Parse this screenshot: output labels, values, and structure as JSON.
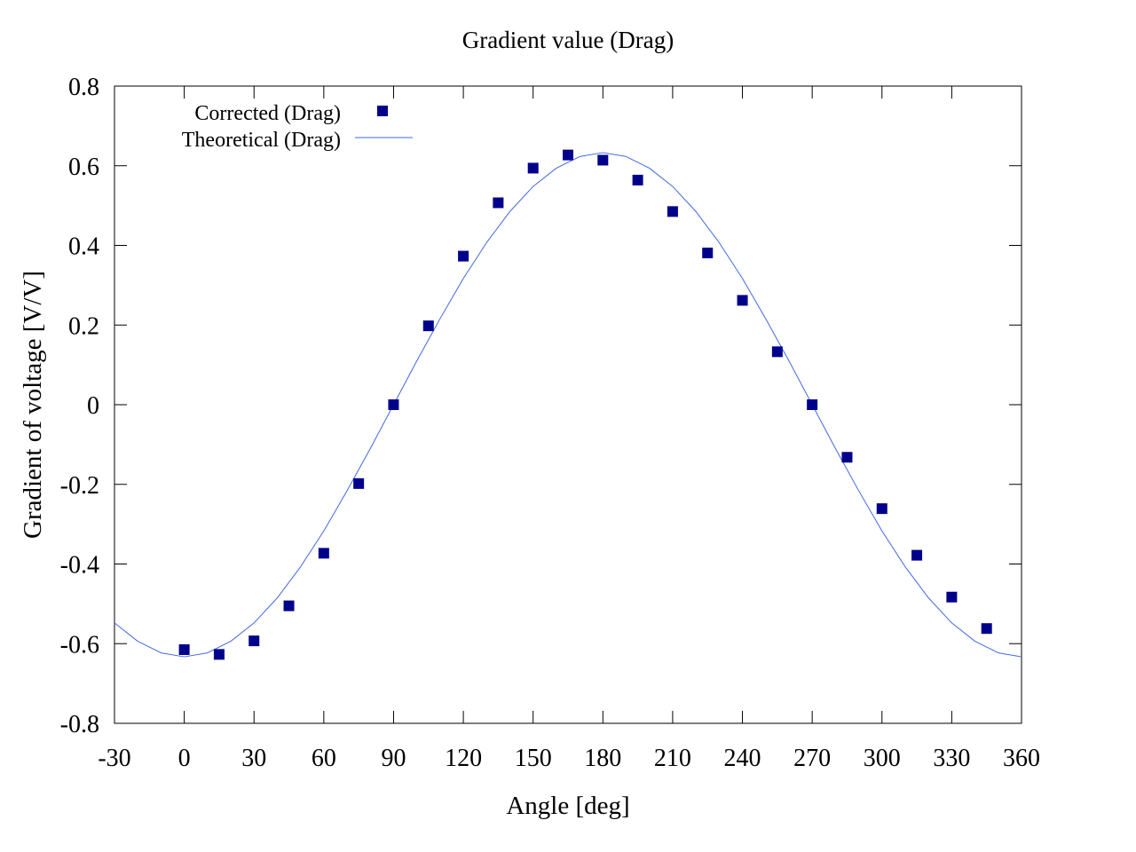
{
  "chart_data": {
    "type": "scatter",
    "title": "Gradient value (Drag)",
    "xlabel": "Angle [deg]",
    "ylabel": "Gradient of voltage [V/V]",
    "xlim": [
      -30,
      360
    ],
    "ylim": [
      -0.8,
      0.8
    ],
    "xticks": [
      -30,
      0,
      30,
      60,
      90,
      120,
      150,
      180,
      210,
      240,
      270,
      300,
      330,
      360
    ],
    "xtick_labels": [
      "-30",
      "0",
      "30",
      "60",
      "90",
      "120",
      "150",
      "180",
      "210",
      "240",
      "270",
      "300",
      "330",
      "360"
    ],
    "yticks": [
      -0.8,
      -0.6,
      -0.4,
      -0.2,
      0,
      0.2,
      0.4,
      0.6,
      0.8
    ],
    "ytick_labels": [
      "-0.8",
      "-0.6",
      "-0.4",
      "-0.2",
      "0",
      "0.2",
      "0.4",
      "0.6",
      "0.8"
    ],
    "grid": false,
    "legend_position": "top-left",
    "series": [
      {
        "name": "Corrected (Drag)",
        "kind": "points",
        "marker": "square",
        "color": "#00008b",
        "x": [
          0,
          15,
          30,
          45,
          60,
          75,
          90,
          105,
          120,
          135,
          150,
          165,
          180,
          195,
          210,
          225,
          240,
          255,
          270,
          285,
          300,
          315,
          330,
          345
        ],
        "y": [
          -0.615,
          -0.627,
          -0.593,
          -0.505,
          -0.373,
          -0.198,
          0.0,
          0.198,
          0.373,
          0.507,
          0.594,
          0.627,
          0.614,
          0.564,
          0.485,
          0.381,
          0.262,
          0.133,
          0.0,
          -0.132,
          -0.261,
          -0.378,
          -0.483,
          -0.562
        ]
      },
      {
        "name": "Theoretical (Drag)",
        "kind": "line",
        "color": "#4169e1",
        "x": [
          -30,
          -20,
          -10,
          0,
          10,
          20,
          30,
          40,
          50,
          60,
          70,
          80,
          90,
          100,
          110,
          120,
          130,
          140,
          150,
          160,
          170,
          180,
          190,
          200,
          210,
          220,
          230,
          240,
          250,
          260,
          270,
          280,
          290,
          300,
          310,
          320,
          330,
          340,
          350,
          360
        ],
        "y": [
          -0.548,
          -0.594,
          -0.623,
          -0.633,
          -0.623,
          -0.594,
          -0.548,
          -0.485,
          -0.407,
          -0.317,
          -0.216,
          -0.11,
          0.0,
          0.11,
          0.216,
          0.317,
          0.407,
          0.485,
          0.548,
          0.594,
          0.623,
          0.633,
          0.623,
          0.594,
          0.548,
          0.485,
          0.407,
          0.317,
          0.216,
          0.11,
          0.0,
          -0.11,
          -0.216,
          -0.317,
          -0.407,
          -0.485,
          -0.548,
          -0.594,
          -0.623,
          -0.633
        ]
      }
    ]
  }
}
